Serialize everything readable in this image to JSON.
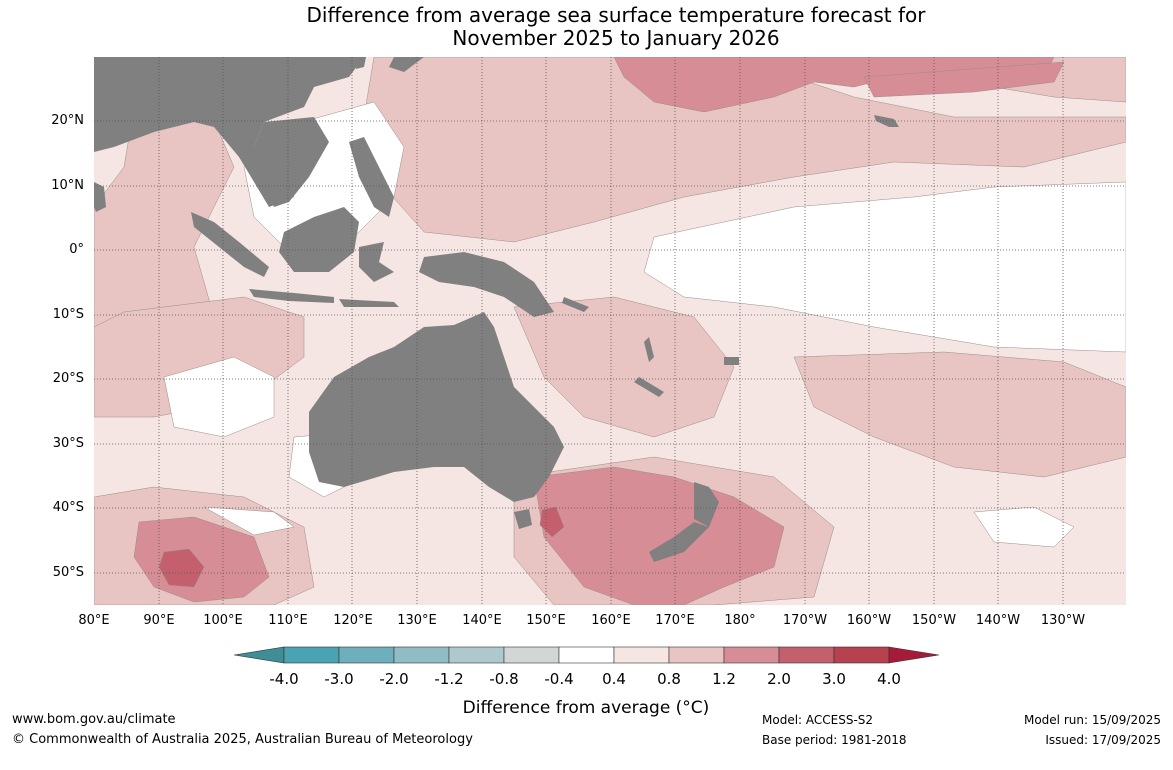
{
  "title_line1": "Difference from average sea surface temperature forecast for",
  "title_line2": "November 2025 to January 2026",
  "lat_labels": [
    {
      "lat": 20,
      "text": "20°N"
    },
    {
      "lat": 10,
      "text": "10°N"
    },
    {
      "lat": 0,
      "text": "0°"
    },
    {
      "lat": -10,
      "text": "10°S"
    },
    {
      "lat": -20,
      "text": "20°S"
    },
    {
      "lat": -30,
      "text": "30°S"
    },
    {
      "lat": -40,
      "text": "40°S"
    },
    {
      "lat": -50,
      "text": "50°S"
    }
  ],
  "lon_labels": [
    {
      "lon": 80,
      "text": "80°E"
    },
    {
      "lon": 90,
      "text": "90°E"
    },
    {
      "lon": 100,
      "text": "100°E"
    },
    {
      "lon": 110,
      "text": "110°E"
    },
    {
      "lon": 120,
      "text": "120°E"
    },
    {
      "lon": 130,
      "text": "130°E"
    },
    {
      "lon": 140,
      "text": "140°E"
    },
    {
      "lon": 150,
      "text": "150°E"
    },
    {
      "lon": 160,
      "text": "160°E"
    },
    {
      "lon": 170,
      "text": "170°E"
    },
    {
      "lon": 180,
      "text": "180°"
    },
    {
      "lon": 190,
      "text": "170°W"
    },
    {
      "lon": 200,
      "text": "160°W"
    },
    {
      "lon": 210,
      "text": "150°W"
    },
    {
      "lon": 220,
      "text": "140°W"
    },
    {
      "lon": 230,
      "text": "130°W"
    }
  ],
  "map_extent": {
    "lon_min": 80,
    "lon_max": 239.5,
    "lat_min": -55,
    "lat_max": 30
  },
  "colorbar": {
    "colors": [
      "#3f8e96",
      "#4aa3b3",
      "#6eafbd",
      "#8fbcc5",
      "#adc9cd",
      "#d2d6d7",
      "#ffffff",
      "#f5e6e4",
      "#e8c5c2",
      "#d68d96",
      "#c45f6d",
      "#b8414f",
      "#a41c37"
    ],
    "ticks": [
      "-4.0",
      "-3.0",
      "-2.0",
      "-1.2",
      "-0.8",
      "-0.4",
      "0.4",
      "0.8",
      "1.2",
      "2.0",
      "3.0",
      "4.0"
    ],
    "label": "Difference from average (°C)"
  },
  "land_color": "#808080",
  "footer": {
    "website": "www.bom.gov.au/climate",
    "copyright": "© Commonwealth of Australia 2025, Australian Bureau of Meteorology",
    "model": "Model: ACCESS-S2",
    "base_period": "Base period: 1981-2018",
    "model_run": "Model run: 15/09/2025",
    "issued": "Issued: 17/09/2025"
  }
}
